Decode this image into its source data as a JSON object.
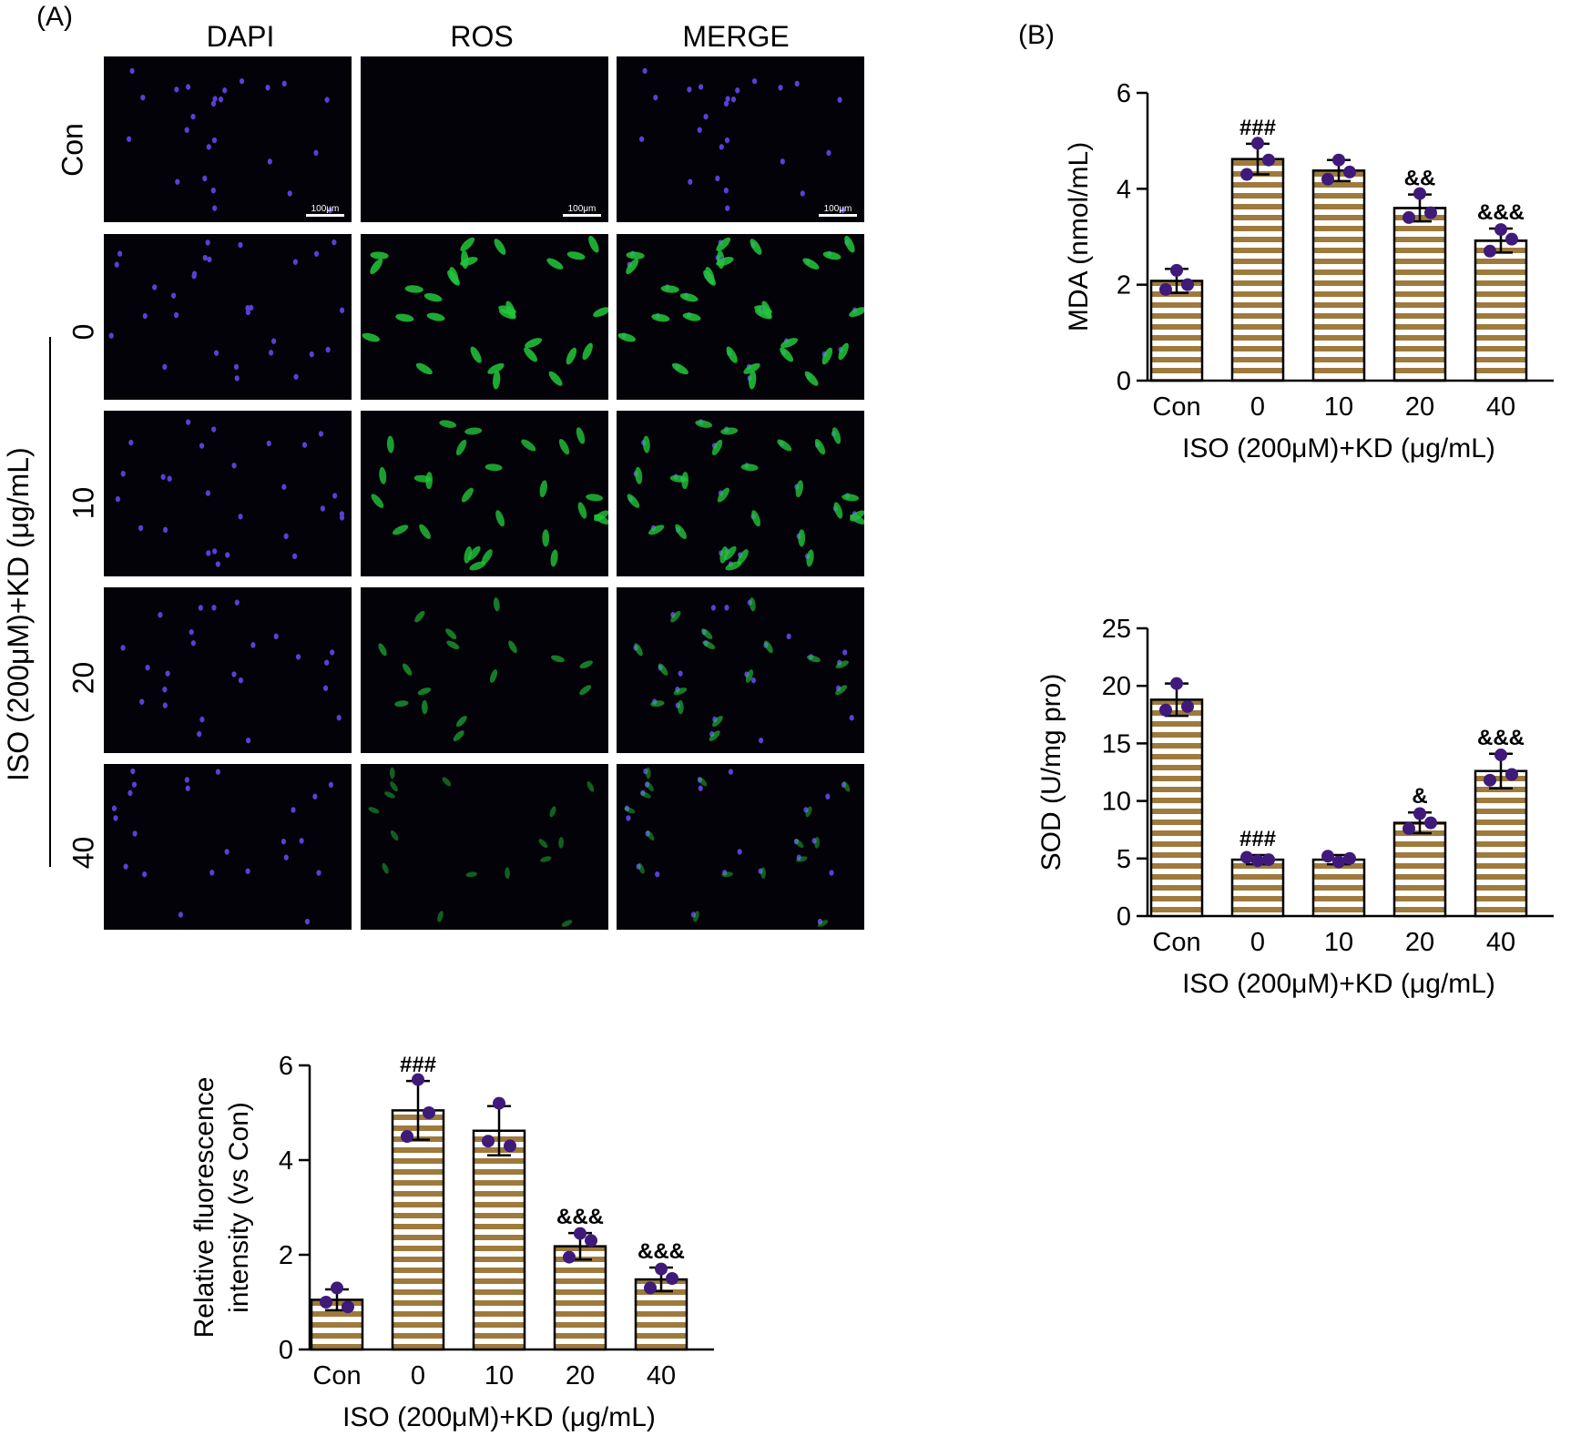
{
  "panels": {
    "a_label": "(A)",
    "b_label": "(B)"
  },
  "micrographs": {
    "columns": [
      "DAPI",
      "ROS",
      "MERGE"
    ],
    "rows": [
      "Con",
      "0",
      "10",
      "20",
      "40"
    ],
    "side_label": "ISO (200μM)+KD (μg/mL)",
    "scale_bar": "100μm",
    "ros_intensity": [
      0.02,
      0.85,
      0.75,
      0.45,
      0.22
    ],
    "colors": {
      "dapi": "#5b3fd6",
      "ros": "#22c63a",
      "background": "#030208"
    }
  },
  "chart_data": [
    {
      "id": "fluorescence",
      "type": "bar",
      "categories": [
        "Con",
        "0",
        "10",
        "20",
        "40"
      ],
      "values": [
        1.05,
        5.05,
        4.62,
        2.18,
        1.48
      ],
      "errors": [
        0.22,
        0.62,
        0.52,
        0.28,
        0.25
      ],
      "points": [
        [
          1.3,
          1.0,
          0.9
        ],
        [
          5.7,
          4.5,
          5.0
        ],
        [
          5.2,
          4.4,
          4.3
        ],
        [
          2.45,
          1.95,
          2.3
        ],
        [
          1.7,
          1.3,
          1.5
        ]
      ],
      "annotations": [
        "",
        "###",
        "",
        "&&&",
        "&&&"
      ],
      "ylabel": "Relative fluorescence\nintensity (vs Con)",
      "xlabel": "ISO (200μM)+KD (μg/mL)",
      "ylim": [
        0,
        6
      ],
      "yticks": [
        "0",
        "2",
        "4",
        "6"
      ],
      "grid": false,
      "colors": {
        "bar_stripe": "#9e7a3c",
        "bar_fill": "#ffffff",
        "point": "#3f1a7a"
      }
    },
    {
      "id": "mda",
      "type": "bar",
      "categories": [
        "Con",
        "0",
        "10",
        "20",
        "40"
      ],
      "values": [
        2.08,
        4.62,
        4.38,
        3.6,
        2.92
      ],
      "errors": [
        0.25,
        0.32,
        0.22,
        0.28,
        0.25
      ],
      "points": [
        [
          2.3,
          1.9,
          2.0
        ],
        [
          4.95,
          4.3,
          4.6
        ],
        [
          4.6,
          4.2,
          4.35
        ],
        [
          3.9,
          3.4,
          3.5
        ],
        [
          3.15,
          2.7,
          2.95
        ]
      ],
      "annotations": [
        "",
        "###",
        "",
        "&&",
        "&&&"
      ],
      "ylabel": "MDA (nmol/mL)",
      "xlabel": "ISO (200μM)+KD (μg/mL)",
      "ylim": [
        0,
        6
      ],
      "yticks": [
        "0",
        "2",
        "4",
        "6"
      ],
      "grid": false,
      "colors": {
        "bar_stripe": "#9e7a3c",
        "bar_fill": "#ffffff",
        "point": "#3f1a7a"
      }
    },
    {
      "id": "sod",
      "type": "bar",
      "categories": [
        "Con",
        "0",
        "10",
        "20",
        "40"
      ],
      "values": [
        18.8,
        4.9,
        4.9,
        8.1,
        12.6
      ],
      "errors": [
        1.4,
        0.4,
        0.4,
        0.9,
        1.5
      ],
      "points": [
        [
          20.2,
          17.9,
          18.2
        ],
        [
          4.8,
          5.1,
          4.9
        ],
        [
          4.7,
          5.2,
          5.0
        ],
        [
          8.9,
          7.6,
          8.1
        ],
        [
          14.0,
          11.8,
          12.3
        ]
      ],
      "annotations": [
        "",
        "###",
        "",
        "&",
        "&&&"
      ],
      "ylabel": "SOD (U/mg pro)",
      "xlabel": "ISO (200μM)+KD (μg/mL)",
      "ylim": [
        0,
        25
      ],
      "yticks": [
        "0",
        "5",
        "10",
        "15",
        "20",
        "25"
      ],
      "grid": false,
      "colors": {
        "bar_stripe": "#9e7a3c",
        "bar_fill": "#ffffff",
        "point": "#3f1a7a"
      }
    }
  ]
}
